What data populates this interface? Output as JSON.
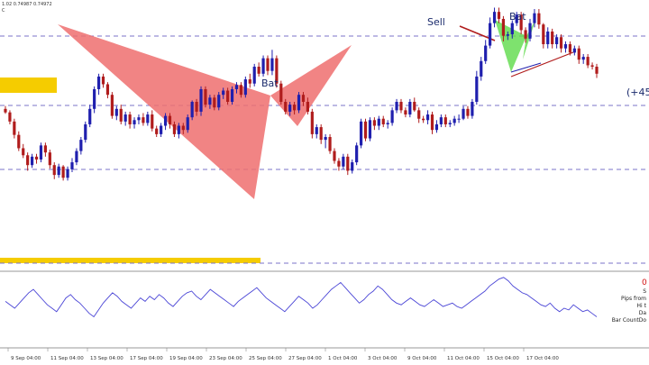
{
  "header": {
    "values": "1.02 0.74987 0.74972",
    "sub": "C"
  },
  "annotations": {
    "bat_left": "Bat",
    "bat_right": "Bat",
    "sell": "Sell",
    "pips_gain": "(+45"
  },
  "indicator_panel": {
    "value": "0",
    "lines": [
      "S",
      "Pips from",
      "Hi t",
      "Da",
      "Bar CountDo"
    ]
  },
  "colors": {
    "bull": "#1f1fae",
    "bear": "#b01c1c",
    "bat_left_fill": "#ee6f6f",
    "bat_right_fill": "#5edb4a",
    "level_line": "#7b73c9",
    "zone": "#f5cc00",
    "rsi": "#4a45d6"
  },
  "chart_data": {
    "type": "candlestick",
    "x_tick_labels": [
      "9 Sep 04:00",
      "11 Sep 04:00",
      "13 Sep 04:00",
      "17 Sep 04:00",
      "19 Sep 04:00",
      "23 Sep 04:00",
      "25 Sep 04:00",
      "27 Sep 04:00",
      "1 Oct 04:00",
      "3 Oct 04:00",
      "9 Oct 04:00",
      "11 Oct 04:00",
      "15 Oct 04:00",
      "17 Oct 04:00"
    ],
    "candles": [
      [
        140,
        135,
        144,
        133
      ],
      [
        135,
        122,
        138,
        118
      ],
      [
        122,
        103,
        126,
        98
      ],
      [
        103,
        84,
        108,
        80
      ],
      [
        84,
        74,
        90,
        70
      ],
      [
        74,
        60,
        78,
        52
      ],
      [
        60,
        72,
        76,
        56
      ],
      [
        72,
        68,
        76,
        62
      ],
      [
        68,
        88,
        92,
        64
      ],
      [
        88,
        78,
        92,
        72
      ],
      [
        78,
        60,
        82,
        55
      ],
      [
        60,
        46,
        64,
        40
      ],
      [
        46,
        58,
        62,
        42
      ],
      [
        58,
        42,
        60,
        38
      ],
      [
        42,
        54,
        58,
        38
      ],
      [
        54,
        64,
        70,
        50
      ],
      [
        64,
        80,
        84,
        60
      ],
      [
        80,
        96,
        100,
        75
      ],
      [
        96,
        118,
        122,
        92
      ],
      [
        118,
        140,
        146,
        114
      ],
      [
        140,
        168,
        172,
        134
      ],
      [
        168,
        186,
        190,
        160
      ],
      [
        186,
        175,
        190,
        170
      ],
      [
        175,
        160,
        178,
        155
      ],
      [
        160,
        130,
        164,
        126
      ],
      [
        130,
        140,
        144,
        124
      ],
      [
        140,
        122,
        146,
        118
      ],
      [
        122,
        132,
        136,
        116
      ],
      [
        132,
        118,
        136,
        112
      ],
      [
        118,
        124,
        128,
        112
      ],
      [
        124,
        128,
        132,
        118
      ],
      [
        128,
        120,
        134,
        116
      ],
      [
        120,
        132,
        136,
        116
      ],
      [
        132,
        112,
        138,
        108
      ],
      [
        112,
        104,
        116,
        100
      ],
      [
        104,
        116,
        120,
        100
      ],
      [
        116,
        130,
        134,
        110
      ],
      [
        130,
        118,
        134,
        112
      ],
      [
        118,
        104,
        122,
        100
      ],
      [
        104,
        116,
        120,
        98
      ],
      [
        116,
        110,
        120,
        104
      ],
      [
        110,
        128,
        132,
        106
      ],
      [
        128,
        150,
        152,
        124
      ],
      [
        150,
        136,
        154,
        130
      ],
      [
        136,
        168,
        172,
        130
      ],
      [
        168,
        146,
        172,
        142
      ],
      [
        146,
        156,
        160,
        140
      ],
      [
        156,
        142,
        160,
        138
      ],
      [
        142,
        160,
        164,
        138
      ],
      [
        160,
        166,
        170,
        154
      ],
      [
        166,
        150,
        170,
        146
      ],
      [
        150,
        168,
        172,
        146
      ],
      [
        168,
        174,
        178,
        162
      ],
      [
        174,
        160,
        178,
        156
      ],
      [
        160,
        182,
        186,
        156
      ],
      [
        182,
        176,
        190,
        170
      ],
      [
        176,
        200,
        204,
        172
      ],
      [
        200,
        190,
        206,
        186
      ],
      [
        190,
        212,
        216,
        186
      ],
      [
        212,
        194,
        216,
        188
      ],
      [
        194,
        212,
        224,
        188
      ],
      [
        212,
        176,
        216,
        170
      ],
      [
        176,
        150,
        180,
        146
      ],
      [
        150,
        136,
        154,
        132
      ],
      [
        136,
        146,
        150,
        130
      ],
      [
        146,
        138,
        150,
        132
      ],
      [
        138,
        160,
        164,
        134
      ],
      [
        160,
        150,
        164,
        144
      ],
      [
        150,
        136,
        156,
        132
      ],
      [
        136,
        104,
        140,
        98
      ],
      [
        104,
        114,
        118,
        98
      ],
      [
        114,
        96,
        118,
        90
      ],
      [
        96,
        100,
        104,
        84
      ],
      [
        100,
        80,
        104,
        76
      ],
      [
        80,
        66,
        84,
        62
      ],
      [
        66,
        58,
        70,
        52
      ],
      [
        58,
        72,
        76,
        54
      ],
      [
        72,
        52,
        76,
        46
      ],
      [
        52,
        64,
        68,
        48
      ],
      [
        64,
        88,
        92,
        60
      ],
      [
        88,
        122,
        126,
        84
      ],
      [
        122,
        98,
        126,
        94
      ],
      [
        98,
        124,
        128,
        94
      ],
      [
        124,
        116,
        128,
        110
      ],
      [
        116,
        126,
        130,
        110
      ],
      [
        126,
        118,
        130,
        114
      ],
      [
        118,
        120,
        124,
        112
      ],
      [
        120,
        138,
        142,
        116
      ],
      [
        138,
        150,
        154,
        134
      ],
      [
        150,
        138,
        154,
        134
      ],
      [
        138,
        132,
        142,
        128
      ],
      [
        132,
        150,
        154,
        128
      ],
      [
        150,
        138,
        156,
        136
      ],
      [
        138,
        126,
        142,
        120
      ],
      [
        126,
        124,
        130,
        120
      ],
      [
        124,
        132,
        138,
        118
      ],
      [
        132,
        110,
        136,
        104
      ],
      [
        110,
        118,
        124,
        106
      ],
      [
        118,
        128,
        132,
        114
      ],
      [
        128,
        118,
        132,
        114
      ],
      [
        118,
        120,
        124,
        114
      ],
      [
        120,
        126,
        130,
        116
      ],
      [
        126,
        126,
        132,
        120
      ],
      [
        126,
        140,
        144,
        124
      ],
      [
        140,
        130,
        144,
        126
      ],
      [
        130,
        150,
        154,
        126
      ],
      [
        150,
        186,
        194,
        146
      ],
      [
        186,
        208,
        214,
        180
      ],
      [
        208,
        230,
        238,
        204
      ],
      [
        230,
        262,
        270,
        226
      ],
      [
        262,
        278,
        284,
        256
      ],
      [
        278,
        268,
        284,
        262
      ],
      [
        268,
        244,
        272,
        236
      ],
      [
        244,
        246,
        250,
        238
      ],
      [
        246,
        262,
        266,
        240
      ],
      [
        262,
        274,
        278,
        258
      ],
      [
        274,
        252,
        278,
        246
      ],
      [
        252,
        240,
        256,
        234
      ],
      [
        240,
        262,
        268,
        236
      ],
      [
        262,
        276,
        282,
        256
      ],
      [
        276,
        260,
        282,
        254
      ],
      [
        260,
        232,
        262,
        226
      ],
      [
        232,
        250,
        256,
        226
      ],
      [
        250,
        232,
        254,
        226
      ],
      [
        232,
        242,
        246,
        226
      ],
      [
        242,
        226,
        246,
        220
      ],
      [
        226,
        232,
        236,
        220
      ],
      [
        232,
        220,
        236,
        216
      ],
      [
        220,
        226,
        230,
        216
      ],
      [
        226,
        210,
        230,
        204
      ],
      [
        210,
        214,
        218,
        204
      ],
      [
        214,
        202,
        218,
        198
      ],
      [
        202,
        200,
        206,
        196
      ],
      [
        200,
        190,
        204,
        184
      ]
    ],
    "rsi": [
      48,
      44,
      40,
      46,
      52,
      58,
      62,
      56,
      50,
      44,
      40,
      36,
      44,
      52,
      56,
      50,
      46,
      40,
      34,
      30,
      38,
      46,
      52,
      58,
      54,
      48,
      44,
      40,
      46,
      52,
      48,
      54,
      50,
      56,
      52,
      46,
      42,
      48,
      54,
      58,
      60,
      54,
      50,
      56,
      62,
      58,
      54,
      50,
      46,
      42,
      48,
      52,
      56,
      60,
      64,
      58,
      52,
      48,
      44,
      40,
      36,
      42,
      48,
      54,
      50,
      46,
      40,
      44,
      50,
      56,
      62,
      66,
      70,
      64,
      58,
      52,
      46,
      50,
      56,
      60,
      66,
      62,
      56,
      50,
      46,
      44,
      48,
      52,
      48,
      44,
      42,
      46,
      50,
      46,
      42,
      44,
      46,
      42,
      40,
      44,
      48,
      52,
      56,
      60,
      66,
      70,
      74,
      76,
      72,
      66,
      62,
      58,
      56,
      52,
      48,
      44,
      42,
      46,
      40,
      36,
      40,
      38,
      44,
      40,
      36,
      38,
      34,
      30
    ]
  }
}
